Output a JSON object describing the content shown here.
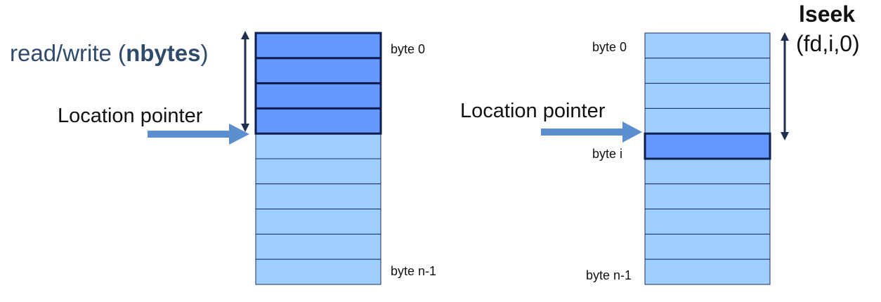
{
  "colors": {
    "cell_fill": "#9fcfff",
    "cell_stroke": "#1e2f5e",
    "selected_fill": "#6699ff",
    "selected_stroke": "#0f1f4d",
    "arrow_blue": "#5b8fd0",
    "arrow_dark": "#1f2f4f",
    "op_text": "#2f4a6b"
  },
  "left": {
    "op_prefix": "read/write (",
    "op_arg": "nbytes",
    "op_suffix": ")",
    "pointer_label": "Location pointer",
    "byte_first": "byte 0",
    "byte_last": "byte n-1",
    "cell_count": 10,
    "selected_count": 4
  },
  "right": {
    "op_name": "lseek",
    "op_args": "(fd,i,0)",
    "pointer_label": "Location pointer",
    "byte_first": "byte 0",
    "byte_i": "byte i",
    "byte_last": "byte n-1",
    "cell_count": 10,
    "selected_index": 4
  }
}
